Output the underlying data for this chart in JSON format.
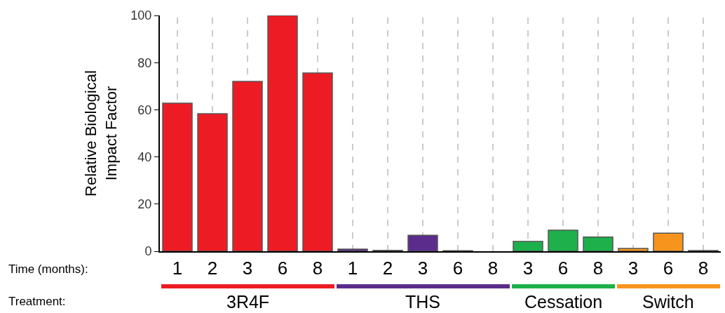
{
  "chart_data": {
    "type": "bar",
    "ylabel": "Relative Biological\nImpact Factor",
    "categories": [
      "1",
      "2",
      "3",
      "6",
      "8",
      "1",
      "2",
      "3",
      "6",
      "8",
      "3",
      "6",
      "8",
      "3",
      "6",
      "8"
    ],
    "values": [
      62.8,
      58.3,
      72,
      100,
      75.6,
      0.9,
      0.4,
      6.8,
      0.2,
      null,
      4.2,
      8.9,
      6,
      1.2,
      7.7,
      0.3
    ],
    "colors": [
      "#ed1c24",
      "#ed1c24",
      "#ed1c24",
      "#ed1c24",
      "#ed1c24",
      "#5b2c8c",
      "#5b2c8c",
      "#5b2c8c",
      "#5b2c8c",
      "#5b2c8c",
      "#1db04b",
      "#1db04b",
      "#1db04b",
      "#f7941d",
      "#f7941d",
      "#f7941d"
    ],
    "ylim": [
      0,
      100
    ],
    "yticks": [
      0,
      20,
      40,
      60,
      80,
      100
    ],
    "grid": "x",
    "annotations": [
      "Time (months):",
      "Treatment:",
      "3R4F",
      "THS",
      "Cessation",
      "Switch"
    ]
  }
}
